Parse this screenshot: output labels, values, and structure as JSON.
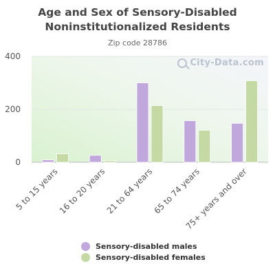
{
  "watermark": "City-Data.com",
  "chart_data": {
    "type": "bar",
    "title": "Age and Sex of Sensory-Disabled Noninstitutionalized Residents",
    "subtitle": "Zip code 28786",
    "categories": [
      "5 to 15 years",
      "16 to 20 years",
      "21 to 64 years",
      "65 to 74 years",
      "75+ years and over"
    ],
    "series": [
      {
        "name": "Sensory-disabled males",
        "color": "#c0a8dc",
        "values": [
          9,
          26,
          300,
          157,
          147
        ]
      },
      {
        "name": "Sensory-disabled females",
        "color": "#c5d9a5",
        "values": [
          32,
          6,
          214,
          121,
          308
        ]
      }
    ],
    "ylim": [
      0,
      400
    ],
    "yticks": [
      "0",
      "200",
      "400"
    ],
    "grid": true,
    "legend_position": "bottom"
  }
}
